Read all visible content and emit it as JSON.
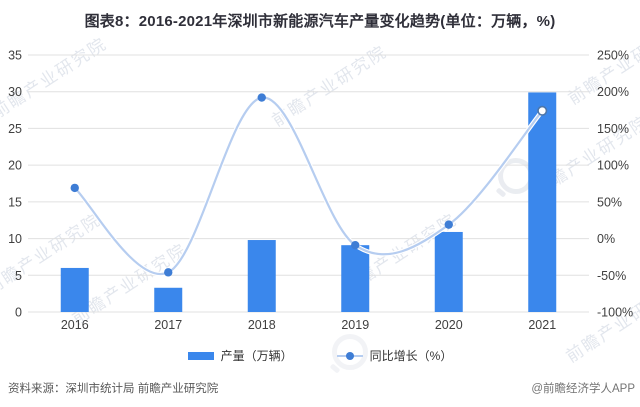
{
  "title": "图表8：2016-2021年深圳市新能源汽车产量变化趋势(单位：万辆，%)",
  "chart_data": {
    "type": "bar+line combo",
    "categories": [
      "2016",
      "2017",
      "2018",
      "2019",
      "2020",
      "2021"
    ],
    "series": [
      {
        "name": "产量（万辆）",
        "type": "bar",
        "axis": "left",
        "values": [
          6.0,
          3.3,
          9.8,
          9.1,
          10.9,
          29.9
        ]
      },
      {
        "name": "同比增长（%）",
        "type": "line",
        "axis": "right",
        "values": [
          69,
          -46,
          192,
          -9,
          19,
          174
        ]
      }
    ],
    "left_axis": {
      "min": 0,
      "max": 35,
      "ticks": [
        "35",
        "30",
        "25",
        "20",
        "15",
        "10",
        "5",
        "0"
      ]
    },
    "right_axis": {
      "min": -100,
      "max": 250,
      "ticks": [
        "250%",
        "200%",
        "150%",
        "100%",
        "50%",
        "0%",
        "-50%",
        "-100%"
      ]
    },
    "grid": true,
    "legend_position": "bottom",
    "last_marker_open": true
  },
  "legend": {
    "production": "产量（万辆）",
    "growth": "同比增长（%）"
  },
  "footer": {
    "source": "资料来源：深圳市统计局 前瞻产业研究院",
    "credit": "@前瞻经济学人APP"
  },
  "watermark": {
    "text": "前瞻产业研究院"
  },
  "colors": {
    "bar": "#3A87EC",
    "line": "#B6CDF0",
    "marker": "#3E7DD5",
    "marker_last_fill": "#FFFFFF",
    "marker_last_stroke": "#4E76A8",
    "grid": "#E0E0E0",
    "axis_text": "#404040",
    "title_text": "#2F2F39"
  }
}
